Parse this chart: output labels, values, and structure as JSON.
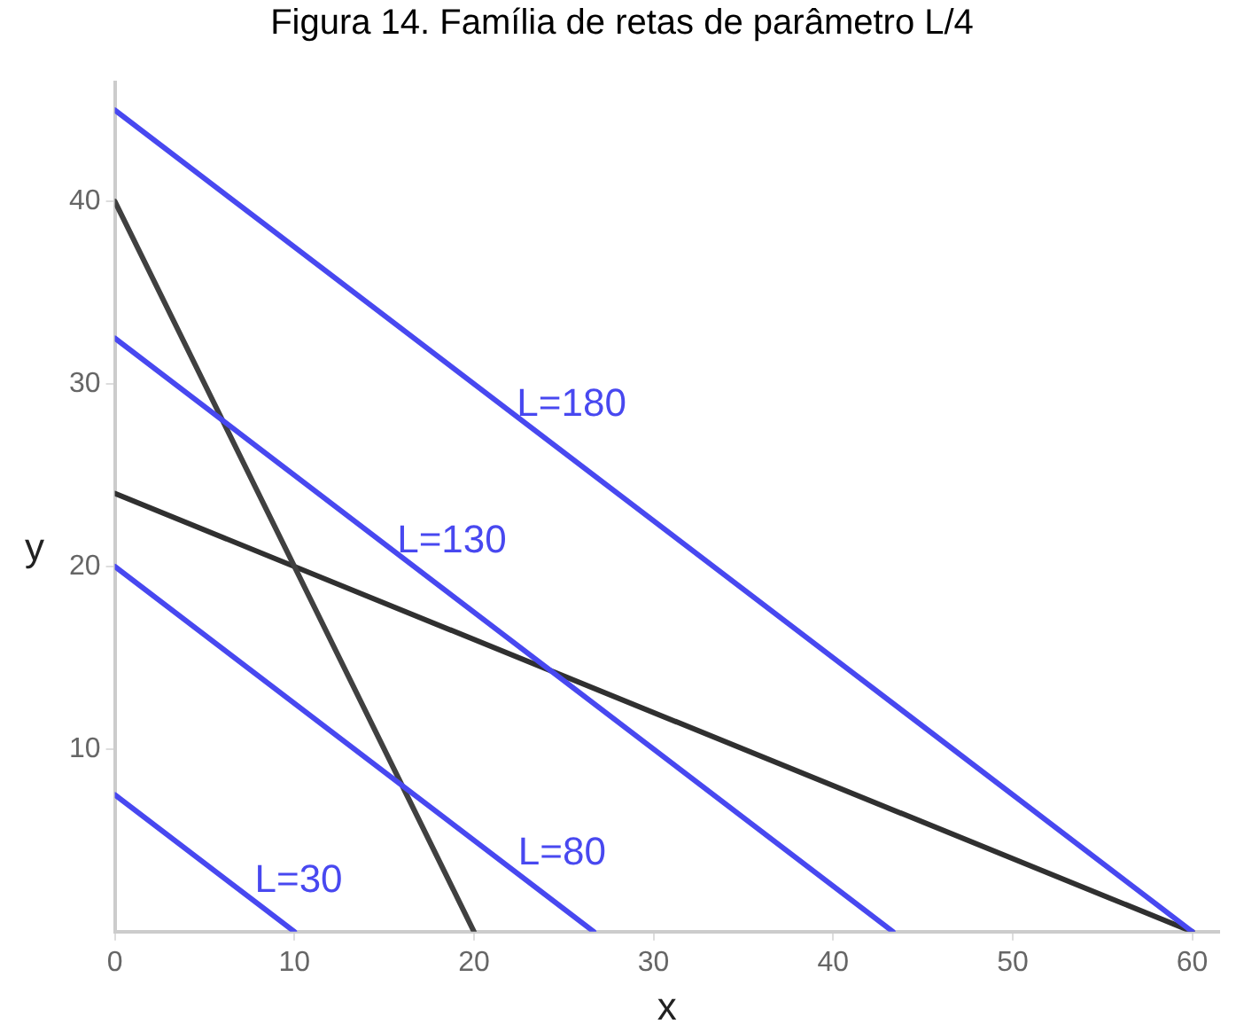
{
  "chart_data": {
    "type": "line",
    "title": "Figura 14. Família de retas de parâmetro L/4",
    "xlabel": "x",
    "ylabel": "y",
    "series": [
      {
        "name": "L=180",
        "color": "#4848f0",
        "x": [
          0,
          60
        ],
        "values": [
          45,
          0
        ]
      },
      {
        "name": "L=130",
        "color": "#4848f0",
        "x": [
          0,
          43.33
        ],
        "values": [
          32.5,
          0
        ]
      },
      {
        "name": "L=80",
        "color": "#4848f0",
        "x": [
          0,
          26.67
        ],
        "values": [
          20,
          0
        ]
      },
      {
        "name": "L=30",
        "color": "#4848f0",
        "x": [
          0,
          10
        ],
        "values": [
          7.5,
          0
        ]
      },
      {
        "color": "#404040",
        "x": [
          0,
          20
        ],
        "values": [
          40,
          0
        ]
      },
      {
        "color": "#303030",
        "x": [
          0,
          60
        ],
        "values": [
          24,
          0
        ]
      }
    ],
    "xlim": [
      0,
      61.5
    ],
    "ylim": [
      0,
      46.5
    ],
    "xticks": [
      0,
      10,
      20,
      30,
      40,
      50,
      60
    ],
    "yticks": [
      10,
      20,
      30,
      40
    ],
    "grid": false,
    "legend": false,
    "marker": "none",
    "line_style": "solid"
  }
}
